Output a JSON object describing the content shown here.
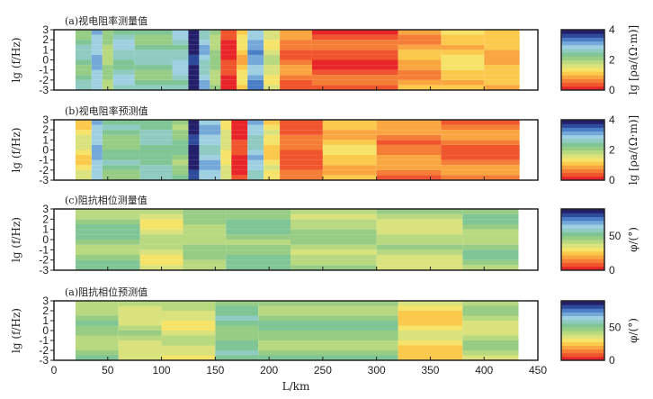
{
  "colors": {
    "scale": [
      "#e8262a",
      "#f0552e",
      "#f57e36",
      "#f9a640",
      "#fbc94c",
      "#f6e36a",
      "#d9e27c",
      "#b8d97f",
      "#97cc84",
      "#7fc596",
      "#8fcbc1",
      "#9ed0e2",
      "#74a8d8",
      "#4a7ec6",
      "#2e4a9b",
      "#241f6b"
    ],
    "frame": "#222222"
  },
  "chart_data": [
    {
      "type": "heatmap",
      "title": "(a)视电阻率测量值",
      "xlabel": "",
      "ylabel": "lg (f/Hz)",
      "xlim": [
        0,
        450
      ],
      "ylim": [
        -3,
        3
      ],
      "yticks": [
        "3",
        "2",
        "1",
        "0",
        "-1",
        "-2",
        "-3"
      ],
      "colorbar": {
        "label": "lg [ρa/(Ω·m)]",
        "ticks": [
          "4",
          "2",
          "0"
        ],
        "range": [
          0,
          4
        ]
      },
      "columns": [
        {
          "x": [
            20,
            35
          ],
          "value": 2.4
        },
        {
          "x": [
            35,
            45
          ],
          "value": 3.0
        },
        {
          "x": [
            45,
            55
          ],
          "value": 2.0
        },
        {
          "x": [
            55,
            75
          ],
          "value": 2.6
        },
        {
          "x": [
            75,
            110
          ],
          "value": 2.4
        },
        {
          "x": [
            110,
            125
          ],
          "value": 2.7
        },
        {
          "x": [
            125,
            135
          ],
          "value": 3.9
        },
        {
          "x": [
            135,
            145
          ],
          "value": 2.8
        },
        {
          "x": [
            145,
            155
          ],
          "value": 2.0
        },
        {
          "x": [
            155,
            170
          ],
          "value": 0.2
        },
        {
          "x": [
            170,
            180
          ],
          "value": 1.2
        },
        {
          "x": [
            180,
            195
          ],
          "value": 3.1
        },
        {
          "x": [
            195,
            210
          ],
          "value": 1.6
        },
        {
          "x": [
            210,
            240
          ],
          "value": 0.6
        },
        {
          "x": [
            240,
            320
          ],
          "value": 0.4
        },
        {
          "x": [
            320,
            360
          ],
          "value": 0.9
        },
        {
          "x": [
            360,
            400
          ],
          "value": 1.2
        },
        {
          "x": [
            400,
            433
          ],
          "value": 1.0
        }
      ]
    },
    {
      "type": "heatmap",
      "title": "(b)视电阻率预测值",
      "xlabel": "",
      "ylabel": "lg (f/Hz)",
      "xlim": [
        0,
        450
      ],
      "ylim": [
        -3,
        3
      ],
      "yticks": [
        "3",
        "2",
        "1",
        "0",
        "-1",
        "-2",
        "-3"
      ],
      "colorbar": {
        "label": "lg [ρa/(Ω·m)]",
        "ticks": [
          "4",
          "2",
          "0"
        ],
        "range": [
          0,
          4
        ]
      },
      "columns": [
        {
          "x": [
            20,
            35
          ],
          "value": 1.4
        },
        {
          "x": [
            35,
            45
          ],
          "value": 3.0
        },
        {
          "x": [
            45,
            80
          ],
          "value": 2.3
        },
        {
          "x": [
            80,
            110
          ],
          "value": 2.5
        },
        {
          "x": [
            110,
            125
          ],
          "value": 2.2
        },
        {
          "x": [
            125,
            135
          ],
          "value": 3.9
        },
        {
          "x": [
            135,
            155
          ],
          "value": 2.9
        },
        {
          "x": [
            155,
            165
          ],
          "value": 1.5
        },
        {
          "x": [
            165,
            180
          ],
          "value": 0.2
        },
        {
          "x": [
            180,
            195
          ],
          "value": 2.8
        },
        {
          "x": [
            195,
            210
          ],
          "value": 1.3
        },
        {
          "x": [
            210,
            250
          ],
          "value": 0.5
        },
        {
          "x": [
            250,
            300
          ],
          "value": 1.1
        },
        {
          "x": [
            300,
            360
          ],
          "value": 0.7
        },
        {
          "x": [
            360,
            433
          ],
          "value": 0.6
        }
      ]
    },
    {
      "type": "heatmap",
      "title": "(c)阻抗相位测量值",
      "xlabel": "",
      "ylabel": "lg (f/Hz)",
      "xlim": [
        0,
        450
      ],
      "ylim": [
        -3,
        3
      ],
      "yticks": [
        "3",
        "2",
        "1",
        "0",
        "-1",
        "-2",
        "-3"
      ],
      "colorbar": {
        "label": "φ/(°)",
        "ticks": [
          "50",
          "0"
        ],
        "range": [
          0,
          90
        ]
      },
      "columns": [
        {
          "x": [
            20,
            80
          ],
          "value": 48
        },
        {
          "x": [
            80,
            120
          ],
          "value": 38
        },
        {
          "x": [
            120,
            160
          ],
          "value": 45
        },
        {
          "x": [
            160,
            220
          ],
          "value": 50
        },
        {
          "x": [
            220,
            300
          ],
          "value": 44
        },
        {
          "x": [
            300,
            380
          ],
          "value": 40
        },
        {
          "x": [
            380,
            432
          ],
          "value": 47
        }
      ]
    },
    {
      "type": "heatmap",
      "title": "(a)阻抗相位预测值",
      "xlabel": "L/km",
      "ylabel": "lg (f/Hz)",
      "xlim": [
        0,
        450
      ],
      "ylim": [
        -3,
        3
      ],
      "yticks": [
        "3",
        "2",
        "1",
        "0",
        "-1",
        "-2",
        "-3"
      ],
      "xticks": [
        "0",
        "50",
        "100",
        "150",
        "200",
        "250",
        "300",
        "350",
        "400",
        "450"
      ],
      "colorbar": {
        "label": "φ/(°)",
        "ticks": [
          "50",
          "0"
        ],
        "range": [
          0,
          90
        ]
      },
      "columns": [
        {
          "x": [
            20,
            60
          ],
          "value": 46
        },
        {
          "x": [
            60,
            100
          ],
          "value": 40
        },
        {
          "x": [
            100,
            150
          ],
          "value": 36
        },
        {
          "x": [
            150,
            190
          ],
          "value": 52
        },
        {
          "x": [
            190,
            320
          ],
          "value": 48
        },
        {
          "x": [
            320,
            380
          ],
          "value": 30
        },
        {
          "x": [
            380,
            432
          ],
          "value": 42
        }
      ]
    }
  ]
}
